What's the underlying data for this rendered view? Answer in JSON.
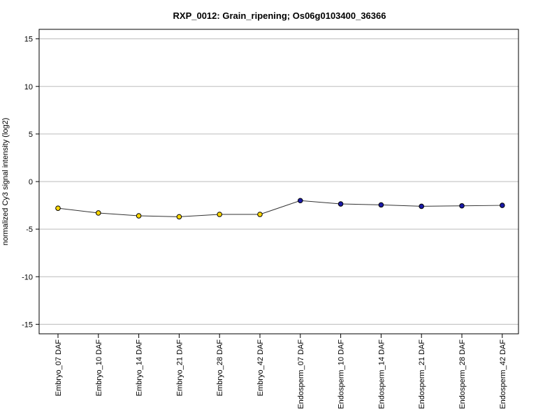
{
  "chart_data": {
    "type": "line",
    "title": "RXP_0012: Grain_ripening; Os06g0103400_36366",
    "ylabel": "normalized Cy3 signal intensity (log2)",
    "xlabel": "",
    "ylim": [
      -16,
      16
    ],
    "yticks": [
      -15,
      -10,
      -5,
      0,
      5,
      10,
      15
    ],
    "grid": true,
    "categories": [
      "Embryo_07 DAF",
      "Embryo_10 DAF",
      "Embryo_14 DAF",
      "Embryo_21 DAF",
      "Embryo_28 DAF",
      "Embryo_42 DAF",
      "Endosperm_07 DAF",
      "Endosperm_10 DAF",
      "Endosperm_14 DAF",
      "Endosperm_21 DAF",
      "Endosperm_28 DAF",
      "Endosperm_42 DAF"
    ],
    "values": [
      -2.8,
      -3.3,
      -3.6,
      -3.7,
      -3.45,
      -3.45,
      -2.0,
      -2.35,
      -2.45,
      -2.6,
      -2.55,
      -2.5
    ],
    "point_colors": [
      "#ffd700",
      "#ffd700",
      "#ffd700",
      "#ffd700",
      "#ffd700",
      "#ffd700",
      "#1a1aa8",
      "#1a1aa8",
      "#1a1aa8",
      "#1a1aa8",
      "#1a1aa8",
      "#1a1aa8"
    ],
    "line_color": "#333333",
    "grid_color": "#bbbbbb"
  }
}
